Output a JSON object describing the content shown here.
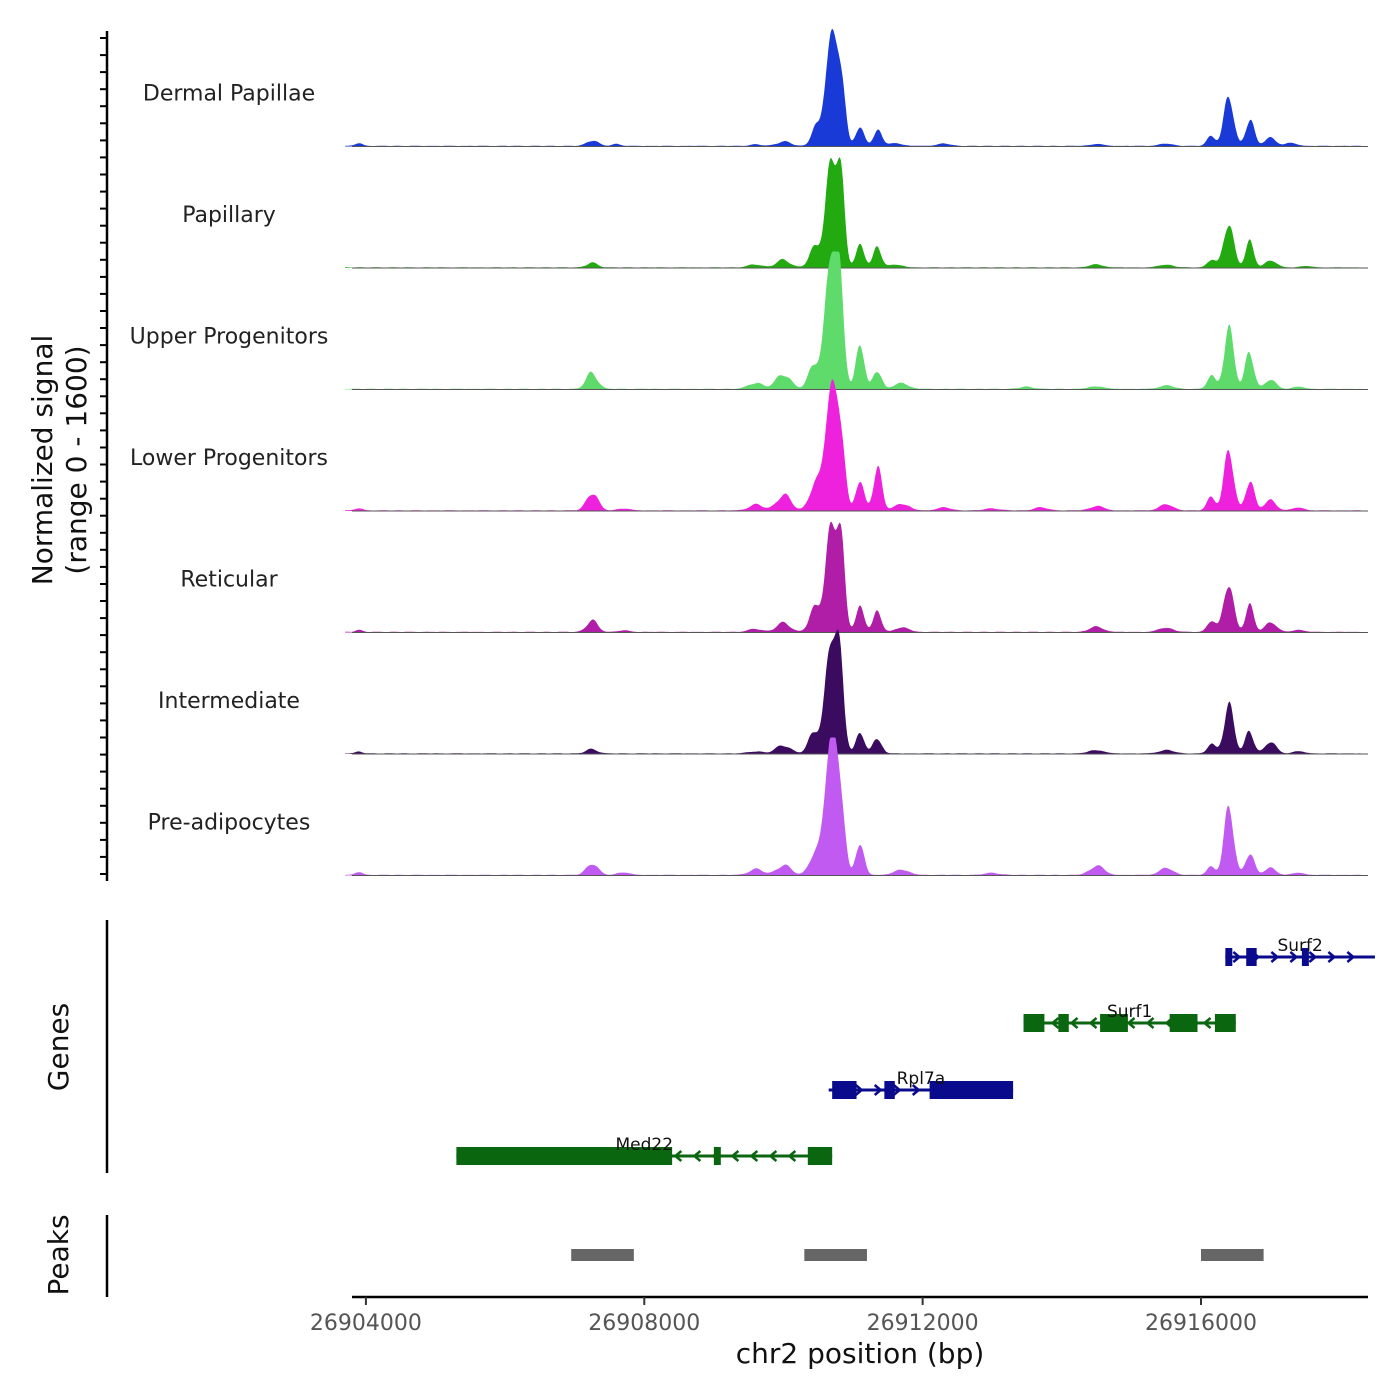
{
  "chart_data": {
    "type": "area",
    "title": "",
    "xlabel": "chr2 position (bp)",
    "ylabel_line1": "Normalized signal",
    "ylabel_line2": "(range 0 - 1600)",
    "ylim": [
      0,
      1600
    ],
    "xlim": [
      26903800,
      26918400
    ],
    "x_ticks": [
      "26904000",
      "26908000",
      "26912000",
      "26916000"
    ],
    "x_tick_values": [
      26904000,
      26908000,
      26912000,
      26916000
    ],
    "series": [
      {
        "name": "Dermal Papillae",
        "color": "#1a3ad8",
        "peaks": [
          [
            26903900,
            40,
            50
          ],
          [
            26907250,
            80,
            80
          ],
          [
            26907600,
            30,
            60
          ],
          [
            26909600,
            20,
            80
          ],
          [
            26910000,
            60,
            100
          ],
          [
            26910450,
            250,
            60
          ],
          [
            26910680,
            1480,
            80
          ],
          [
            26910820,
            1050,
            60
          ],
          [
            26911100,
            260,
            60
          ],
          [
            26911350,
            210,
            60
          ],
          [
            26911600,
            40,
            100
          ],
          [
            26912300,
            30,
            100
          ],
          [
            26914500,
            25,
            100
          ],
          [
            26915500,
            30,
            100
          ],
          [
            26916150,
            150,
            60
          ],
          [
            26916400,
            650,
            70
          ],
          [
            26916700,
            380,
            60
          ],
          [
            26917000,
            120,
            80
          ],
          [
            26917300,
            40,
            80
          ]
        ]
      },
      {
        "name": "Papillary",
        "color": "#22aa10",
        "peaks": [
          [
            26907250,
            60,
            80
          ],
          [
            26909600,
            40,
            100
          ],
          [
            26910000,
            100,
            100
          ],
          [
            26910450,
            250,
            80
          ],
          [
            26910680,
            1480,
            80
          ],
          [
            26910820,
            1050,
            60
          ],
          [
            26911100,
            330,
            60
          ],
          [
            26911350,
            260,
            60
          ],
          [
            26911600,
            40,
            100
          ],
          [
            26914500,
            40,
            100
          ],
          [
            26915500,
            40,
            100
          ],
          [
            26916150,
            110,
            60
          ],
          [
            26916400,
            650,
            70
          ],
          [
            26916700,
            330,
            60
          ],
          [
            26917000,
            100,
            80
          ],
          [
            26917500,
            20,
            80
          ]
        ]
      },
      {
        "name": "Upper Progenitors",
        "color": "#5edb6b",
        "peaks": [
          [
            26907250,
            230,
            80
          ],
          [
            26909600,
            90,
            100
          ],
          [
            26910000,
            220,
            100
          ],
          [
            26910450,
            380,
            80
          ],
          [
            26910680,
            1780,
            80
          ],
          [
            26910820,
            1250,
            60
          ],
          [
            26911100,
            600,
            60
          ],
          [
            26911350,
            280,
            60
          ],
          [
            26911700,
            80,
            100
          ],
          [
            26913500,
            30,
            100
          ],
          [
            26914500,
            40,
            100
          ],
          [
            26915500,
            50,
            100
          ],
          [
            26916150,
            170,
            60
          ],
          [
            26916400,
            850,
            70
          ],
          [
            26916700,
            550,
            60
          ],
          [
            26917000,
            120,
            80
          ],
          [
            26917400,
            30,
            80
          ]
        ]
      },
      {
        "name": "Lower Progenitors",
        "color": "#ee22dd",
        "peaks": [
          [
            26903900,
            30,
            50
          ],
          [
            26907250,
            260,
            80
          ],
          [
            26907700,
            30,
            80
          ],
          [
            26909600,
            80,
            100
          ],
          [
            26910000,
            220,
            100
          ],
          [
            26910450,
            380,
            80
          ],
          [
            26910680,
            1640,
            80
          ],
          [
            26910820,
            1150,
            60
          ],
          [
            26911100,
            400,
            60
          ],
          [
            26911350,
            600,
            60
          ],
          [
            26911700,
            100,
            100
          ],
          [
            26912300,
            40,
            100
          ],
          [
            26913000,
            30,
            100
          ],
          [
            26913700,
            40,
            100
          ],
          [
            26914500,
            60,
            100
          ],
          [
            26915500,
            80,
            100
          ],
          [
            26916150,
            200,
            60
          ],
          [
            26916400,
            780,
            70
          ],
          [
            26916700,
            440,
            60
          ],
          [
            26917000,
            150,
            80
          ],
          [
            26917400,
            40,
            80
          ]
        ]
      },
      {
        "name": "Reticular",
        "color": "#b01ea8",
        "peaks": [
          [
            26903900,
            30,
            50
          ],
          [
            26907250,
            150,
            80
          ],
          [
            26907700,
            20,
            80
          ],
          [
            26909600,
            40,
            100
          ],
          [
            26910000,
            120,
            100
          ],
          [
            26910450,
            300,
            80
          ],
          [
            26910680,
            1480,
            80
          ],
          [
            26910820,
            1100,
            60
          ],
          [
            26911100,
            370,
            60
          ],
          [
            26911350,
            260,
            60
          ],
          [
            26911700,
            60,
            100
          ],
          [
            26914500,
            70,
            100
          ],
          [
            26915500,
            60,
            100
          ],
          [
            26916150,
            160,
            60
          ],
          [
            26916400,
            700,
            70
          ],
          [
            26916700,
            340,
            60
          ],
          [
            26917000,
            140,
            80
          ],
          [
            26917400,
            30,
            80
          ]
        ]
      },
      {
        "name": "Intermediate",
        "color": "#3a0b5e",
        "peaks": [
          [
            26903900,
            25,
            50
          ],
          [
            26907250,
            60,
            80
          ],
          [
            26909600,
            30,
            100
          ],
          [
            26910000,
            120,
            100
          ],
          [
            26910450,
            320,
            80
          ],
          [
            26910680,
            1480,
            80
          ],
          [
            26910820,
            1050,
            60
          ],
          [
            26911100,
            280,
            60
          ],
          [
            26911350,
            230,
            60
          ],
          [
            26914500,
            50,
            100
          ],
          [
            26915500,
            50,
            100
          ],
          [
            26916150,
            120,
            60
          ],
          [
            26916400,
            700,
            70
          ],
          [
            26916700,
            320,
            60
          ],
          [
            26917000,
            150,
            80
          ],
          [
            26917400,
            30,
            80
          ]
        ]
      },
      {
        "name": "Pre-adipocytes",
        "color": "#c05af0",
        "peaks": [
          [
            26903900,
            40,
            50
          ],
          [
            26907250,
            170,
            80
          ],
          [
            26907700,
            40,
            80
          ],
          [
            26909600,
            80,
            100
          ],
          [
            26910000,
            140,
            100
          ],
          [
            26910450,
            320,
            80
          ],
          [
            26910680,
            1880,
            80
          ],
          [
            26910820,
            1150,
            60
          ],
          [
            26911100,
            420,
            60
          ],
          [
            26911700,
            80,
            100
          ],
          [
            26913000,
            30,
            100
          ],
          [
            26914500,
            130,
            100
          ],
          [
            26915500,
            90,
            100
          ],
          [
            26916150,
            120,
            60
          ],
          [
            26916400,
            880,
            70
          ],
          [
            26916700,
            330,
            60
          ],
          [
            26917000,
            100,
            80
          ],
          [
            26917400,
            30,
            80
          ]
        ]
      }
    ],
    "genes_label": "Genes",
    "genes": [
      {
        "name": "Surf2",
        "strand": "+",
        "color": "#0a0a8c",
        "row": 0,
        "start": 26916350,
        "end": 26918500,
        "exons": [
          [
            26916350,
            26916450
          ],
          [
            26916650,
            26916800
          ],
          [
            26917450,
            26917550
          ]
        ]
      },
      {
        "name": "Surf1",
        "strand": "-",
        "color": "#0b6610",
        "row": 1,
        "start": 26913450,
        "end": 26916500,
        "exons": [
          [
            26913450,
            26913750
          ],
          [
            26913950,
            26914100
          ],
          [
            26914550,
            26914950
          ],
          [
            26915550,
            26915950
          ],
          [
            26916200,
            26916500
          ]
        ]
      },
      {
        "name": "Rpl7a",
        "strand": "+",
        "color": "#0a0a8c",
        "row": 2,
        "start": 26910650,
        "end": 26913300,
        "exons": [
          [
            26910700,
            26911050
          ],
          [
            26911450,
            26911600
          ],
          [
            26912100,
            26913300
          ]
        ]
      },
      {
        "name": "Med22",
        "strand": "-",
        "color": "#0b6610",
        "row": 3,
        "start": 26905300,
        "end": 26910700,
        "exons": [
          [
            26905300,
            26908400
          ],
          [
            26909000,
            26909100
          ],
          [
            26910350,
            26910700
          ]
        ]
      }
    ],
    "peaks_label": "Peaks",
    "peak_regions": [
      [
        26906950,
        26907850
      ],
      [
        26910300,
        26911200
      ],
      [
        26916000,
        26916900
      ]
    ]
  }
}
